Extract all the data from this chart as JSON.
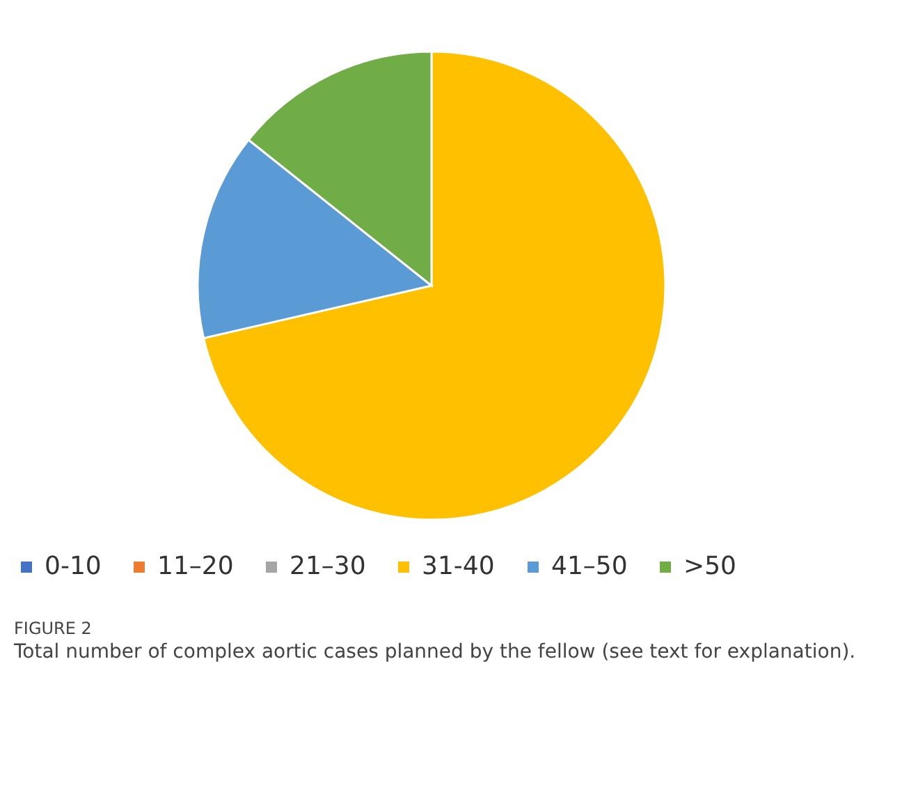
{
  "chart_data": {
    "type": "pie",
    "categories": [
      "0-10",
      "11–20",
      "21–30",
      "31-40",
      "41–50",
      ">50"
    ],
    "values": [
      0,
      0,
      0,
      71.4,
      14.3,
      14.3
    ],
    "colors": [
      "#4472c4",
      "#ed7d31",
      "#a5a5a5",
      "#ffc000",
      "#5b9bd5",
      "#70ad47"
    ],
    "legend": "bottom",
    "annotations": [
      "FIGURE 2",
      "Total number of complex aortic cases planned by the fellow (see text for explanation)."
    ]
  }
}
